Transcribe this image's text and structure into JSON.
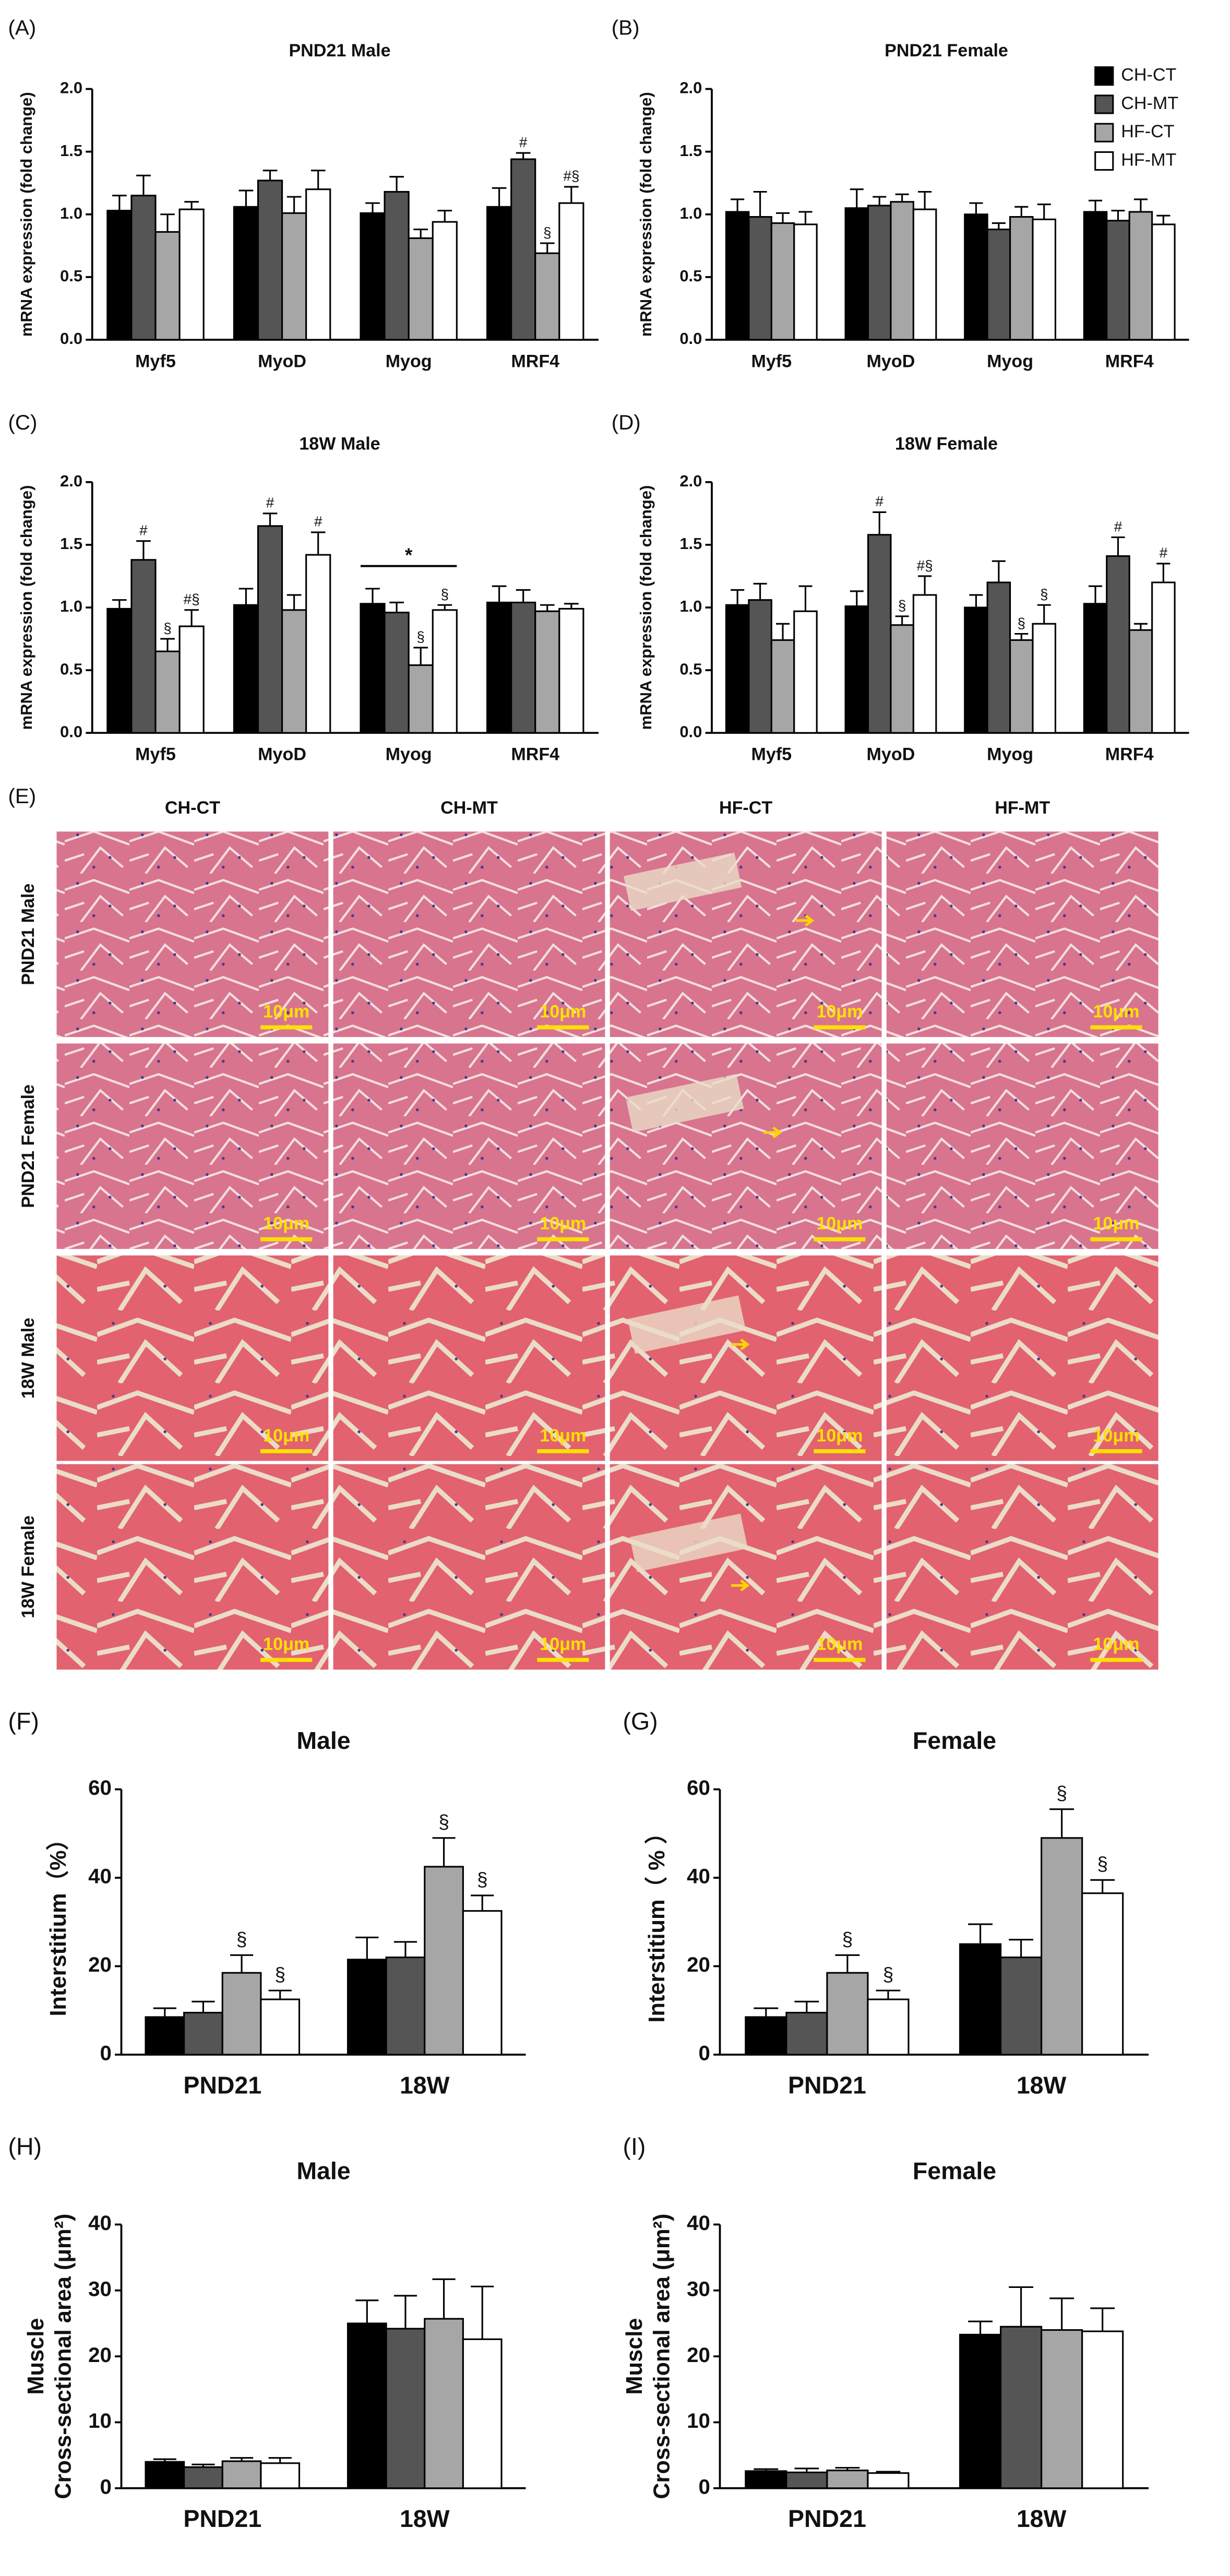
{
  "chart_data": [
    {
      "type": "bar",
      "panel_label": "(A)",
      "title": "PND21 Male",
      "y_label": "mRNA expression (fold change)",
      "categories": [
        "Myf5",
        "MyoD",
        "Myog",
        "MRF4"
      ],
      "ylim": [
        0,
        2
      ],
      "yticks": [
        {
          "value": 0,
          "label": "0.0"
        },
        0.5,
        {
          "value": 1,
          "label": "1.0"
        },
        1.5,
        {
          "value": 2,
          "label": "2.0"
        }
      ],
      "series": [
        {
          "color": "#000000",
          "values": [
            1.03,
            1.06,
            1.01,
            1.06
          ],
          "errors": [
            0.12,
            0.13,
            0.08,
            0.15
          ],
          "annotations": [
            null,
            null,
            null,
            null
          ]
        },
        {
          "color": "#555555",
          "values": [
            1.15,
            1.27,
            1.18,
            1.44
          ],
          "errors": [
            0.16,
            0.08,
            0.12,
            0.05
          ],
          "annotations": [
            null,
            null,
            null,
            "#"
          ]
        },
        {
          "color": "#a6a6a6",
          "values": [
            0.86,
            1.01,
            0.81,
            0.69
          ],
          "errors": [
            0.14,
            0.13,
            0.07,
            0.08
          ],
          "annotations": [
            null,
            null,
            null,
            "§"
          ]
        },
        {
          "color": "#ffffff",
          "values": [
            1.04,
            1.2,
            0.94,
            1.09
          ],
          "errors": [
            0.06,
            0.15,
            0.09,
            0.13
          ],
          "annotations": [
            null,
            null,
            null,
            "#§"
          ]
        }
      ]
    },
    {
      "type": "bar",
      "panel_label": "(B)",
      "title": "PND21 Female",
      "y_label": "mRNA expression (fold change)",
      "categories": [
        "Myf5",
        "MyoD",
        "Myog",
        "MRF4"
      ],
      "legend": "upper right",
      "ylim": [
        0,
        2
      ],
      "yticks": [
        {
          "value": 0,
          "label": "0.0"
        },
        0.5,
        {
          "value": 1,
          "label": "1.0"
        },
        1.5,
        {
          "value": 2,
          "label": "2.0"
        }
      ],
      "series": [
        {
          "name": "CH-CT",
          "color": "#000000",
          "values": [
            1.02,
            1.05,
            1.0,
            1.02
          ],
          "errors": [
            0.1,
            0.15,
            0.09,
            0.09
          ]
        },
        {
          "name": "CH-MT",
          "color": "#555555",
          "values": [
            0.98,
            1.07,
            0.88,
            0.95
          ],
          "errors": [
            0.2,
            0.07,
            0.05,
            0.08
          ]
        },
        {
          "name": "HF-CT",
          "color": "#a6a6a6",
          "values": [
            0.93,
            1.1,
            0.98,
            1.02
          ],
          "errors": [
            0.08,
            0.06,
            0.08,
            0.1
          ]
        },
        {
          "name": "HF-MT",
          "color": "#ffffff",
          "values": [
            0.92,
            1.04,
            0.96,
            0.92
          ],
          "errors": [
            0.1,
            0.14,
            0.12,
            0.07
          ]
        }
      ]
    },
    {
      "type": "bar",
      "panel_label": "(C)",
      "title": "18W Male",
      "y_label": "mRNA expression (fold change)",
      "categories": [
        "Myf5",
        "MyoD",
        "Myog",
        "MRF4"
      ],
      "category_annotations": [
        null,
        null,
        "*",
        null
      ],
      "ylim": [
        0,
        2
      ],
      "yticks": [
        {
          "value": 0,
          "label": "0.0"
        },
        0.5,
        {
          "value": 1,
          "label": "1.0"
        },
        1.5,
        {
          "value": 2,
          "label": "2.0"
        }
      ],
      "series": [
        {
          "color": "#000000",
          "values": [
            0.99,
            1.02,
            1.03,
            1.04
          ],
          "errors": [
            0.07,
            0.13,
            0.12,
            0.13
          ],
          "annotations": [
            null,
            null,
            null,
            null
          ]
        },
        {
          "color": "#555555",
          "values": [
            1.38,
            1.65,
            0.96,
            1.04
          ],
          "errors": [
            0.15,
            0.1,
            0.08,
            0.1
          ],
          "annotations": [
            "#",
            "#",
            null,
            null
          ]
        },
        {
          "color": "#a6a6a6",
          "values": [
            0.65,
            0.98,
            0.54,
            0.97
          ],
          "errors": [
            0.1,
            0.12,
            0.14,
            0.05
          ],
          "annotations": [
            "§",
            null,
            "§",
            null
          ]
        },
        {
          "color": "#ffffff",
          "values": [
            0.85,
            1.42,
            0.98,
            0.99
          ],
          "errors": [
            0.13,
            0.18,
            0.04,
            0.04
          ],
          "annotations": [
            "#§",
            "#",
            "§",
            null
          ]
        }
      ]
    },
    {
      "type": "bar",
      "panel_label": "(D)",
      "title": "18W Female",
      "y_label": "mRNA expression (fold change)",
      "categories": [
        "Myf5",
        "MyoD",
        "Myog",
        "MRF4"
      ],
      "ylim": [
        0,
        2
      ],
      "yticks": [
        {
          "value": 0,
          "label": "0.0"
        },
        0.5,
        {
          "value": 1,
          "label": "1.0"
        },
        1.5,
        {
          "value": 2,
          "label": "2.0"
        }
      ],
      "series": [
        {
          "color": "#000000",
          "values": [
            1.02,
            1.01,
            1.0,
            1.03
          ],
          "errors": [
            0.12,
            0.12,
            0.1,
            0.14
          ],
          "annotations": [
            null,
            null,
            null,
            null
          ]
        },
        {
          "color": "#555555",
          "values": [
            1.06,
            1.58,
            1.2,
            1.41
          ],
          "errors": [
            0.13,
            0.18,
            0.17,
            0.15
          ],
          "annotations": [
            null,
            "#",
            null,
            "#"
          ]
        },
        {
          "color": "#a6a6a6",
          "values": [
            0.74,
            0.86,
            0.74,
            0.82
          ],
          "errors": [
            0.13,
            0.07,
            0.05,
            0.05
          ],
          "annotations": [
            null,
            "§",
            "§",
            null
          ]
        },
        {
          "color": "#ffffff",
          "values": [
            0.97,
            1.1,
            0.87,
            1.2
          ],
          "errors": [
            0.2,
            0.15,
            0.15,
            0.15
          ],
          "annotations": [
            null,
            "#§",
            "§",
            "#"
          ]
        }
      ]
    },
    {
      "type": "bar",
      "panel_label": "(F)",
      "title": "Male",
      "y_label": "Interstitium（%）",
      "categories": [
        "PND21",
        "18W"
      ],
      "ylim": [
        0,
        60
      ],
      "yticks": [
        0,
        20,
        40,
        60
      ],
      "series": [
        {
          "color": "#000000",
          "values": [
            8.5,
            21.5
          ],
          "errors": [
            2,
            5
          ],
          "annotations": [
            null,
            null
          ]
        },
        {
          "color": "#555555",
          "values": [
            9.5,
            22
          ],
          "errors": [
            2.5,
            3.5
          ],
          "annotations": [
            null,
            null
          ]
        },
        {
          "color": "#a6a6a6",
          "values": [
            18.5,
            42.5
          ],
          "errors": [
            4,
            6.5
          ],
          "annotations": [
            "§",
            "§"
          ]
        },
        {
          "color": "#ffffff",
          "values": [
            12.5,
            32.5
          ],
          "errors": [
            2,
            3.5
          ],
          "annotations": [
            "§",
            "§"
          ]
        }
      ]
    },
    {
      "type": "bar",
      "panel_label": "(G)",
      "title": "Female",
      "y_label": "Interstitium（ % ）",
      "categories": [
        "PND21",
        "18W"
      ],
      "ylim": [
        0,
        60
      ],
      "yticks": [
        0,
        20,
        40,
        60
      ],
      "series": [
        {
          "color": "#000000",
          "values": [
            8.5,
            25
          ],
          "errors": [
            2,
            4.5
          ],
          "annotations": [
            null,
            null
          ]
        },
        {
          "color": "#555555",
          "values": [
            9.5,
            22
          ],
          "errors": [
            2.5,
            4
          ],
          "annotations": [
            null,
            null
          ]
        },
        {
          "color": "#a6a6a6",
          "values": [
            18.5,
            49
          ],
          "errors": [
            4,
            6.5
          ],
          "annotations": [
            "§",
            "§"
          ]
        },
        {
          "color": "#ffffff",
          "values": [
            12.5,
            36.5
          ],
          "errors": [
            2,
            3
          ],
          "annotations": [
            "§",
            "§"
          ]
        }
      ]
    },
    {
      "type": "bar",
      "panel_label": "(H)",
      "title": "Male",
      "y_label": [
        "Muscle",
        "Cross-sectional area (μm²)"
      ],
      "categories": [
        "PND21",
        "18W"
      ],
      "ylim": [
        0,
        40
      ],
      "yticks": [
        0,
        10,
        20,
        30,
        40
      ],
      "series": [
        {
          "color": "#000000",
          "values": [
            4,
            25
          ],
          "errors": [
            0.4,
            3.5
          ]
        },
        {
          "color": "#555555",
          "values": [
            3.2,
            24.2
          ],
          "errors": [
            0.4,
            5
          ]
        },
        {
          "color": "#a6a6a6",
          "values": [
            4.1,
            25.7
          ],
          "errors": [
            0.5,
            6
          ]
        },
        {
          "color": "#ffffff",
          "values": [
            3.8,
            22.6
          ],
          "errors": [
            0.8,
            8
          ]
        }
      ]
    },
    {
      "type": "bar",
      "panel_label": "(I)",
      "title": "Female",
      "y_label": [
        "Muscle",
        "Cross-sectional area (μm²)"
      ],
      "categories": [
        "PND21",
        "18W"
      ],
      "ylim": [
        0,
        40
      ],
      "yticks": [
        0,
        10,
        20,
        30,
        40
      ],
      "series": [
        {
          "color": "#000000",
          "values": [
            2.6,
            23.3
          ],
          "errors": [
            0.3,
            2
          ]
        },
        {
          "color": "#555555",
          "values": [
            2.4,
            24.5
          ],
          "errors": [
            0.6,
            6
          ]
        },
        {
          "color": "#a6a6a6",
          "values": [
            2.7,
            24
          ],
          "errors": [
            0.4,
            4.8
          ]
        },
        {
          "color": "#ffffff",
          "values": [
            2.3,
            23.8
          ],
          "errors": [
            0.2,
            3.5
          ]
        }
      ]
    }
  ],
  "histology": {
    "panel_label": "(E)",
    "columns": [
      "CH-CT",
      "CH-MT",
      "HF-CT",
      "HF-MT"
    ],
    "rows": [
      "PND21 Male",
      "PND21 Female",
      "18W Male",
      "18W Female"
    ],
    "scale_bar": "10μm"
  }
}
